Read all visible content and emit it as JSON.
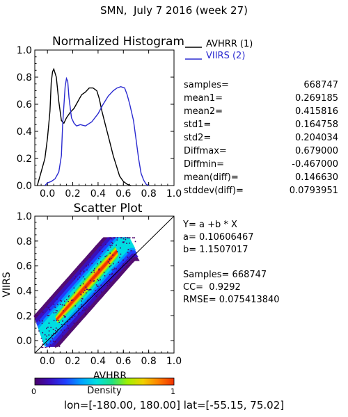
{
  "title": "SMN,  July 7 2016 (week 27)",
  "footer": {
    "lon_label": "lon=",
    "lon_range": "[-180.00, 180.00]",
    "lat_label": "lat=",
    "lat_range": "[-55.15, 75.02]"
  },
  "histogram": {
    "legend": [
      {
        "label": "AVHRR (1)",
        "color": "#000000"
      },
      {
        "label": "VIIRS (2)",
        "color": "#2a2ad0"
      }
    ],
    "stats": [
      {
        "key": "samples=",
        "value": "668747"
      },
      {
        "key": "mean1=",
        "value": "0.269185"
      },
      {
        "key": "mean2=",
        "value": "0.415816"
      },
      {
        "key": "std1=",
        "value": "0.164758"
      },
      {
        "key": "std2=",
        "value": "0.204034"
      },
      {
        "key": "Diffmax=",
        "value": "0.679000"
      },
      {
        "key": "Diffmin=",
        "value": "-0.467000"
      },
      {
        "key": "mean(diff)=",
        "value": "0.146630"
      },
      {
        "key": "stddev(diff)=",
        "value": "0.0793951"
      }
    ]
  },
  "scatter": {
    "fit": {
      "equation": "Y= a +b * X",
      "a_line": "a= 0.10606467",
      "b_line": "b= 1.1507017",
      "samples_line": "Samples= 668747",
      "cc_line": "CC=  0.9292",
      "rmse_line": "RMSE= 0.075413840"
    },
    "colorbar": {
      "label": "Density",
      "min_label": "0",
      "max_label": "1",
      "colors": [
        "#4a006a",
        "#3a10c0",
        "#2040ff",
        "#00a0ff",
        "#00e0e0",
        "#20e080",
        "#a0f000",
        "#f0d000",
        "#ff8000",
        "#f03000"
      ]
    }
  },
  "chart_data": [
    {
      "type": "line",
      "title": "Normalized Histogram",
      "xlabel": "",
      "ylabel": "",
      "xlim": [
        -0.1,
        1.0
      ],
      "ylim": [
        0.0,
        1.0
      ],
      "xticks": [
        "0.0",
        "0.2",
        "0.4",
        "0.6",
        "0.8",
        "1.0"
      ],
      "yticks": [
        "0.0",
        "0.2",
        "0.4",
        "0.6",
        "0.8",
        "1.0"
      ],
      "legend_position": "right-outside",
      "series": [
        {
          "name": "AVHRR (1)",
          "color": "#000000",
          "x": [
            -0.08,
            -0.05,
            -0.02,
            0.0,
            0.02,
            0.03,
            0.04,
            0.05,
            0.07,
            0.09,
            0.11,
            0.13,
            0.15,
            0.18,
            0.21,
            0.24,
            0.27,
            0.3,
            0.33,
            0.36,
            0.39,
            0.41,
            0.43,
            0.46,
            0.49,
            0.52,
            0.55,
            0.57,
            0.6,
            0.63,
            0.66
          ],
          "y": [
            0.0,
            0.1,
            0.2,
            0.35,
            0.55,
            0.76,
            0.84,
            0.86,
            0.8,
            0.62,
            0.48,
            0.46,
            0.5,
            0.54,
            0.57,
            0.62,
            0.67,
            0.69,
            0.72,
            0.72,
            0.7,
            0.64,
            0.55,
            0.44,
            0.33,
            0.22,
            0.13,
            0.07,
            0.03,
            0.01,
            0.0
          ]
        },
        {
          "name": "VIIRS (2)",
          "color": "#2a2ad0",
          "x": [
            -0.02,
            0.0,
            0.03,
            0.06,
            0.09,
            0.11,
            0.12,
            0.14,
            0.15,
            0.16,
            0.17,
            0.19,
            0.21,
            0.23,
            0.26,
            0.3,
            0.35,
            0.4,
            0.44,
            0.48,
            0.52,
            0.55,
            0.58,
            0.61,
            0.63,
            0.65,
            0.68,
            0.7,
            0.72,
            0.74,
            0.76,
            0.78,
            0.8
          ],
          "y": [
            0.0,
            0.02,
            0.03,
            0.05,
            0.1,
            0.22,
            0.45,
            0.73,
            0.79,
            0.77,
            0.65,
            0.5,
            0.46,
            0.44,
            0.45,
            0.44,
            0.47,
            0.53,
            0.6,
            0.66,
            0.7,
            0.72,
            0.73,
            0.72,
            0.67,
            0.6,
            0.48,
            0.34,
            0.2,
            0.09,
            0.04,
            0.01,
            0.0
          ]
        }
      ]
    },
    {
      "type": "scatter",
      "title": "Scatter Plot",
      "xlabel": "AVHRR",
      "ylabel": "VIIRS",
      "xlim": [
        -0.1,
        1.0
      ],
      "ylim": [
        -0.1,
        1.0
      ],
      "xticks": [
        "0.0",
        "0.2",
        "0.4",
        "0.6",
        "0.8",
        "1.0"
      ],
      "yticks": [
        "0.0",
        "0.2",
        "0.4",
        "0.6",
        "0.8",
        "1.0"
      ],
      "regression": {
        "a": 0.10606467,
        "b": 1.1507017
      },
      "identity_line": true,
      "cloud": {
        "x_range": [
          -0.05,
          0.67
        ],
        "y_max": 0.83,
        "y_min": -0.05,
        "density_peak_x": 0.35
      }
    }
  ]
}
